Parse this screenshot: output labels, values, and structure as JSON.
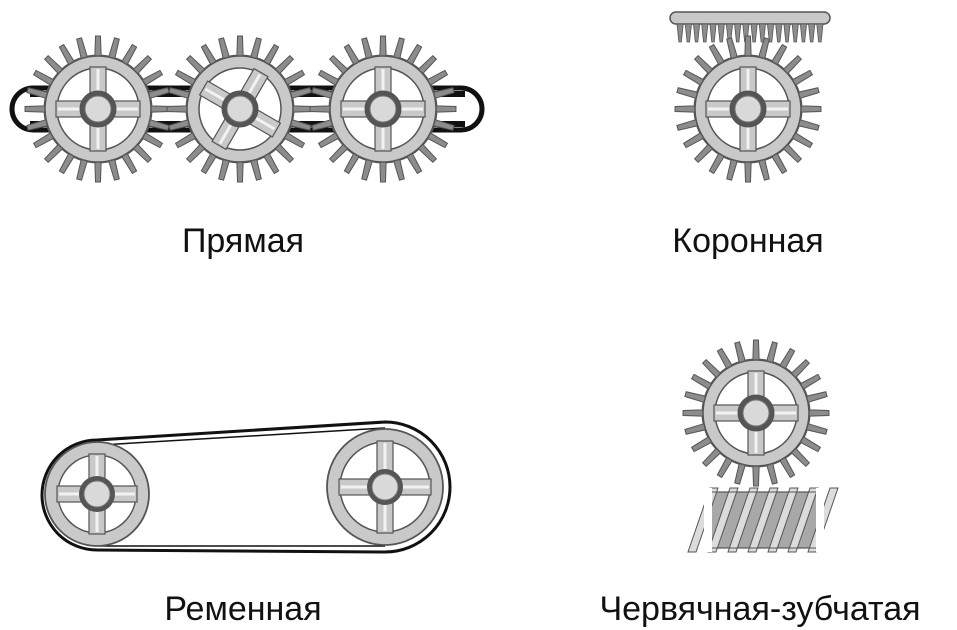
{
  "diagram": {
    "panels": [
      {
        "id": "spur",
        "label": "Прямая"
      },
      {
        "id": "crown",
        "label": "Коронная"
      },
      {
        "id": "belt",
        "label": "Ременная"
      },
      {
        "id": "worm",
        "label": "Червячная-зубчатая"
      }
    ]
  },
  "colors": {
    "gear_fill": "#c9c9c9",
    "tooth_fill": "#8c8c8c",
    "hub_fill": "#d9d9d9",
    "stroke": "#555555",
    "belt": "#111111",
    "text": "#111111"
  }
}
